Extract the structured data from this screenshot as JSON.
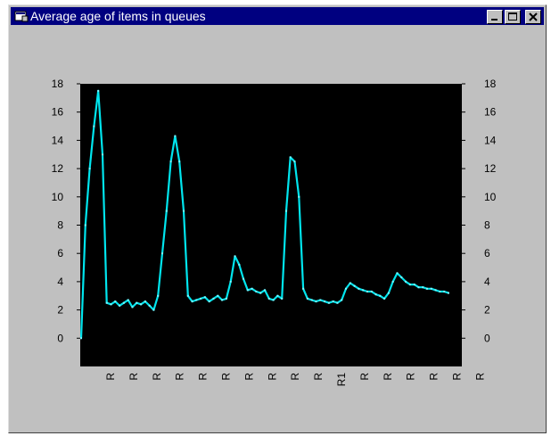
{
  "window": {
    "title": "Average age of items in queues",
    "accent_color": "#000080",
    "icons": [
      "app-window-icon",
      "minimize-icon",
      "maximize-icon",
      "close-icon"
    ]
  },
  "chart_data": {
    "type": "line",
    "title": "",
    "xlabel": "",
    "ylabel": "",
    "ylim": [
      -2,
      18
    ],
    "yticks": [
      0,
      2,
      4,
      6,
      8,
      10,
      12,
      14,
      16,
      18
    ],
    "y_axis_both_sides": true,
    "background": "#000000",
    "series_color": "#00e5ee",
    "grid": false,
    "x_tick_labels": [
      "R",
      "R",
      "R",
      "R",
      "R",
      "R",
      "R",
      "R",
      "R",
      "R",
      "R1",
      "R",
      "R",
      "R",
      "R",
      "R",
      "R"
    ],
    "series": [
      {
        "values": [
          0,
          8,
          12,
          15,
          17.5,
          13,
          2.5,
          2.4,
          2.6,
          2.3,
          2.5,
          2.7,
          2.2,
          2.5,
          2.4,
          2.6,
          2.3,
          2,
          3,
          6,
          9,
          12.5,
          14.3,
          12.5,
          9,
          3,
          2.6,
          2.7,
          2.8,
          2.9,
          2.6,
          2.8,
          3,
          2.7,
          2.8,
          4,
          5.8,
          5.2,
          4.2,
          3.4,
          3.5,
          3.3,
          3.2,
          3.4,
          2.8,
          2.7,
          3,
          2.8,
          9,
          12.8,
          12.5,
          10,
          3.5,
          2.8,
          2.7,
          2.6,
          2.7,
          2.6,
          2.5,
          2.6,
          2.5,
          2.7,
          3.5,
          3.9,
          3.7,
          3.5,
          3.4,
          3.3,
          3.3,
          3.1,
          3,
          2.8,
          3.2,
          4,
          4.6,
          4.3,
          4,
          3.8,
          3.8,
          3.6,
          3.6,
          3.5,
          3.5,
          3.4,
          3.3,
          3.3,
          3.2
        ]
      }
    ]
  }
}
